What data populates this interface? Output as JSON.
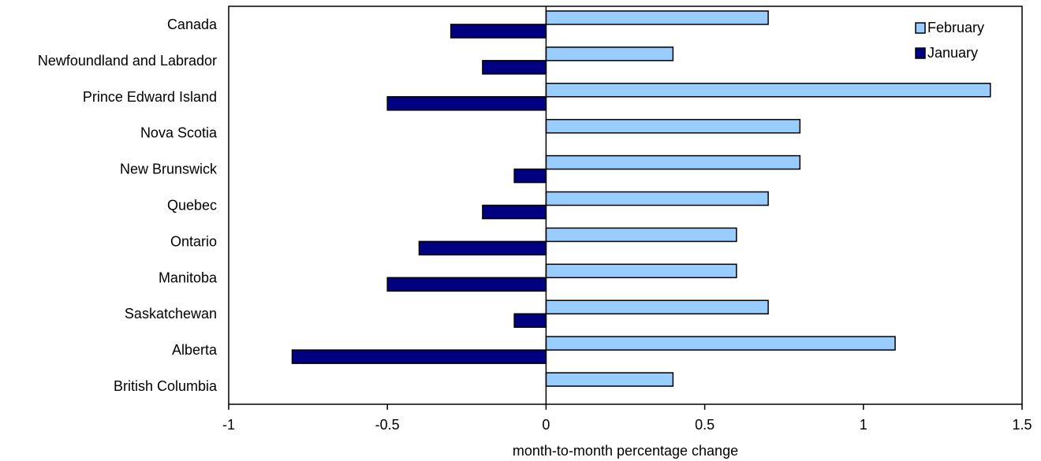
{
  "chart_data": {
    "type": "bar",
    "orientation": "horizontal",
    "categories": [
      "Canada",
      "Newfoundland and Labrador",
      "Prince Edward Island",
      "Nova Scotia",
      "New Brunswick",
      "Quebec",
      "Ontario",
      "Manitoba",
      "Saskatchewan",
      "Alberta",
      "British Columbia"
    ],
    "series": [
      {
        "name": "February",
        "color": "#99ccff",
        "values": [
          0.7,
          0.4,
          1.4,
          0.8,
          0.8,
          0.7,
          0.6,
          0.6,
          0.7,
          1.1,
          0.4
        ]
      },
      {
        "name": "January",
        "color": "#000080",
        "values": [
          -0.3,
          -0.2,
          -0.5,
          0.0,
          -0.1,
          -0.2,
          -0.4,
          -0.5,
          -0.1,
          -0.8,
          0.0
        ]
      }
    ],
    "title": "",
    "xlabel": "month-to-month percentage change",
    "ylabel": "",
    "xlim": [
      -1,
      1.5
    ],
    "xticks": [
      -1,
      -0.5,
      0,
      0.5,
      1,
      1.5
    ],
    "xtick_labels": [
      "-1",
      "-0.5",
      "0",
      "0.5",
      "1",
      "1.5"
    ],
    "grid": false,
    "legend_position": "top-right"
  }
}
